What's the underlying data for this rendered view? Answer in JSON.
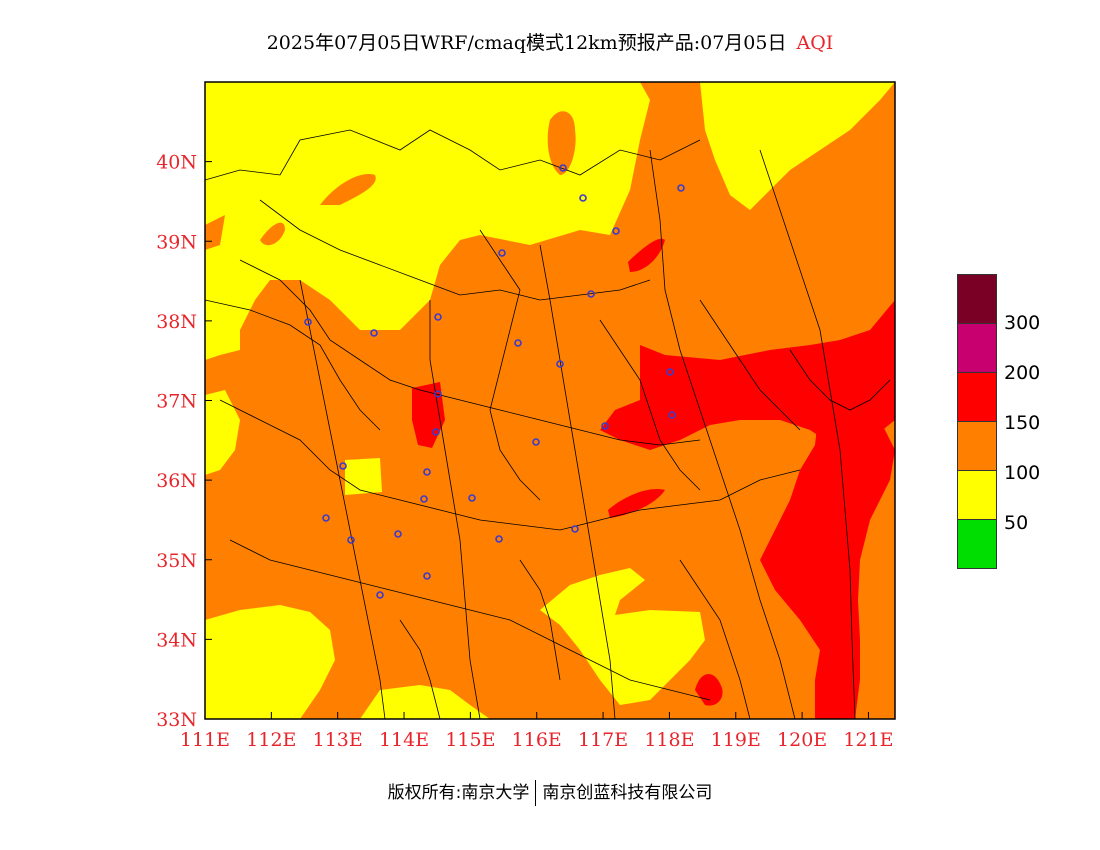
{
  "title": {
    "text": "2025年07月05日WRF/cmaq模式12km预报产品:07月05日",
    "variable": "AQI"
  },
  "map": {
    "lat_labels": [
      "40N",
      "39N",
      "38N",
      "37N",
      "36N",
      "35N",
      "34N",
      "33N"
    ],
    "lon_labels": [
      "111E",
      "112E",
      "113E",
      "114E",
      "115E",
      "116E",
      "117E",
      "118E",
      "119E",
      "120E",
      "121E"
    ],
    "lon_range": [
      111,
      121.4
    ],
    "lat_range": [
      33,
      41
    ],
    "axis_label_color": "#e8252b"
  },
  "legend": {
    "colors": [
      "#7a0026",
      "#c8006f",
      "#ff0000",
      "#ff8000",
      "#ffff00",
      "#00dd00"
    ],
    "labels": [
      "300",
      "200",
      "150",
      "100",
      "50"
    ]
  },
  "footer": {
    "left": "版权所有:南京大学",
    "right": "南京创蓝科技有限公司"
  }
}
